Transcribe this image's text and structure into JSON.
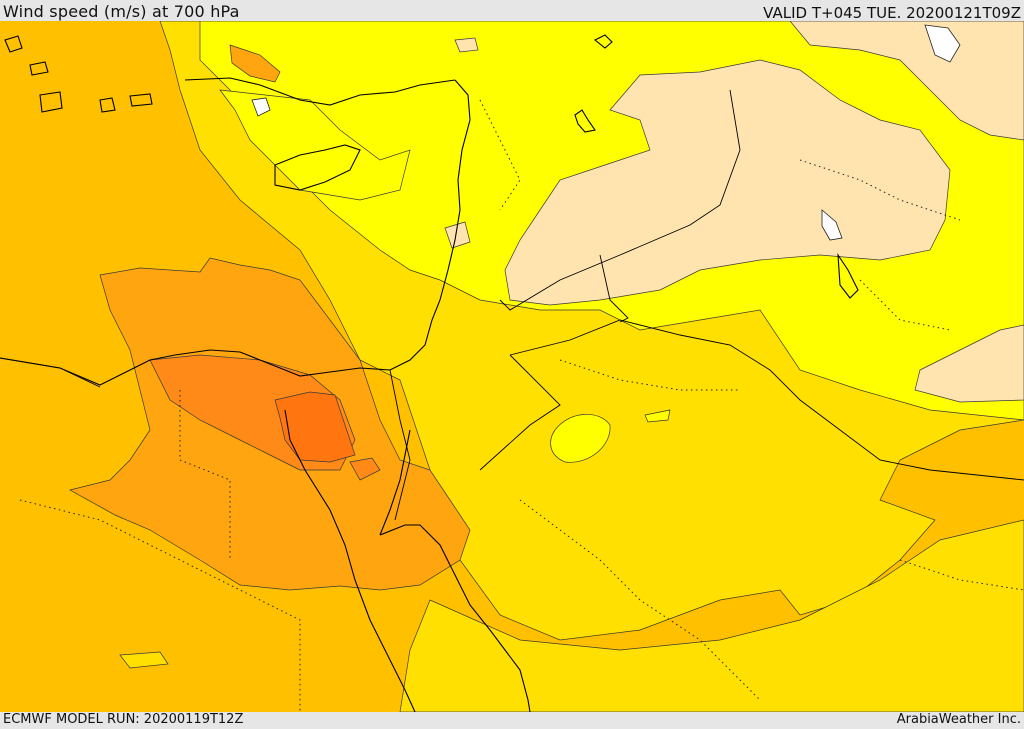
{
  "header": {
    "title": "Wind speed (m/s) at 700 hPa",
    "valid": "VALID T+045 TUE. 20200121T09Z"
  },
  "footer": {
    "model_run": "ECMWF MODEL RUN: 20200119T12Z",
    "credit": "ArabiaWeather Inc."
  },
  "colors": {
    "band_1": "#ffe4b0",
    "band_2": "#ffff00",
    "band_3": "#ffe000",
    "band_4": "#ffc000",
    "band_5": "#ffa510",
    "band_6": "#ff8a18",
    "band_7": "#ff7510"
  }
}
